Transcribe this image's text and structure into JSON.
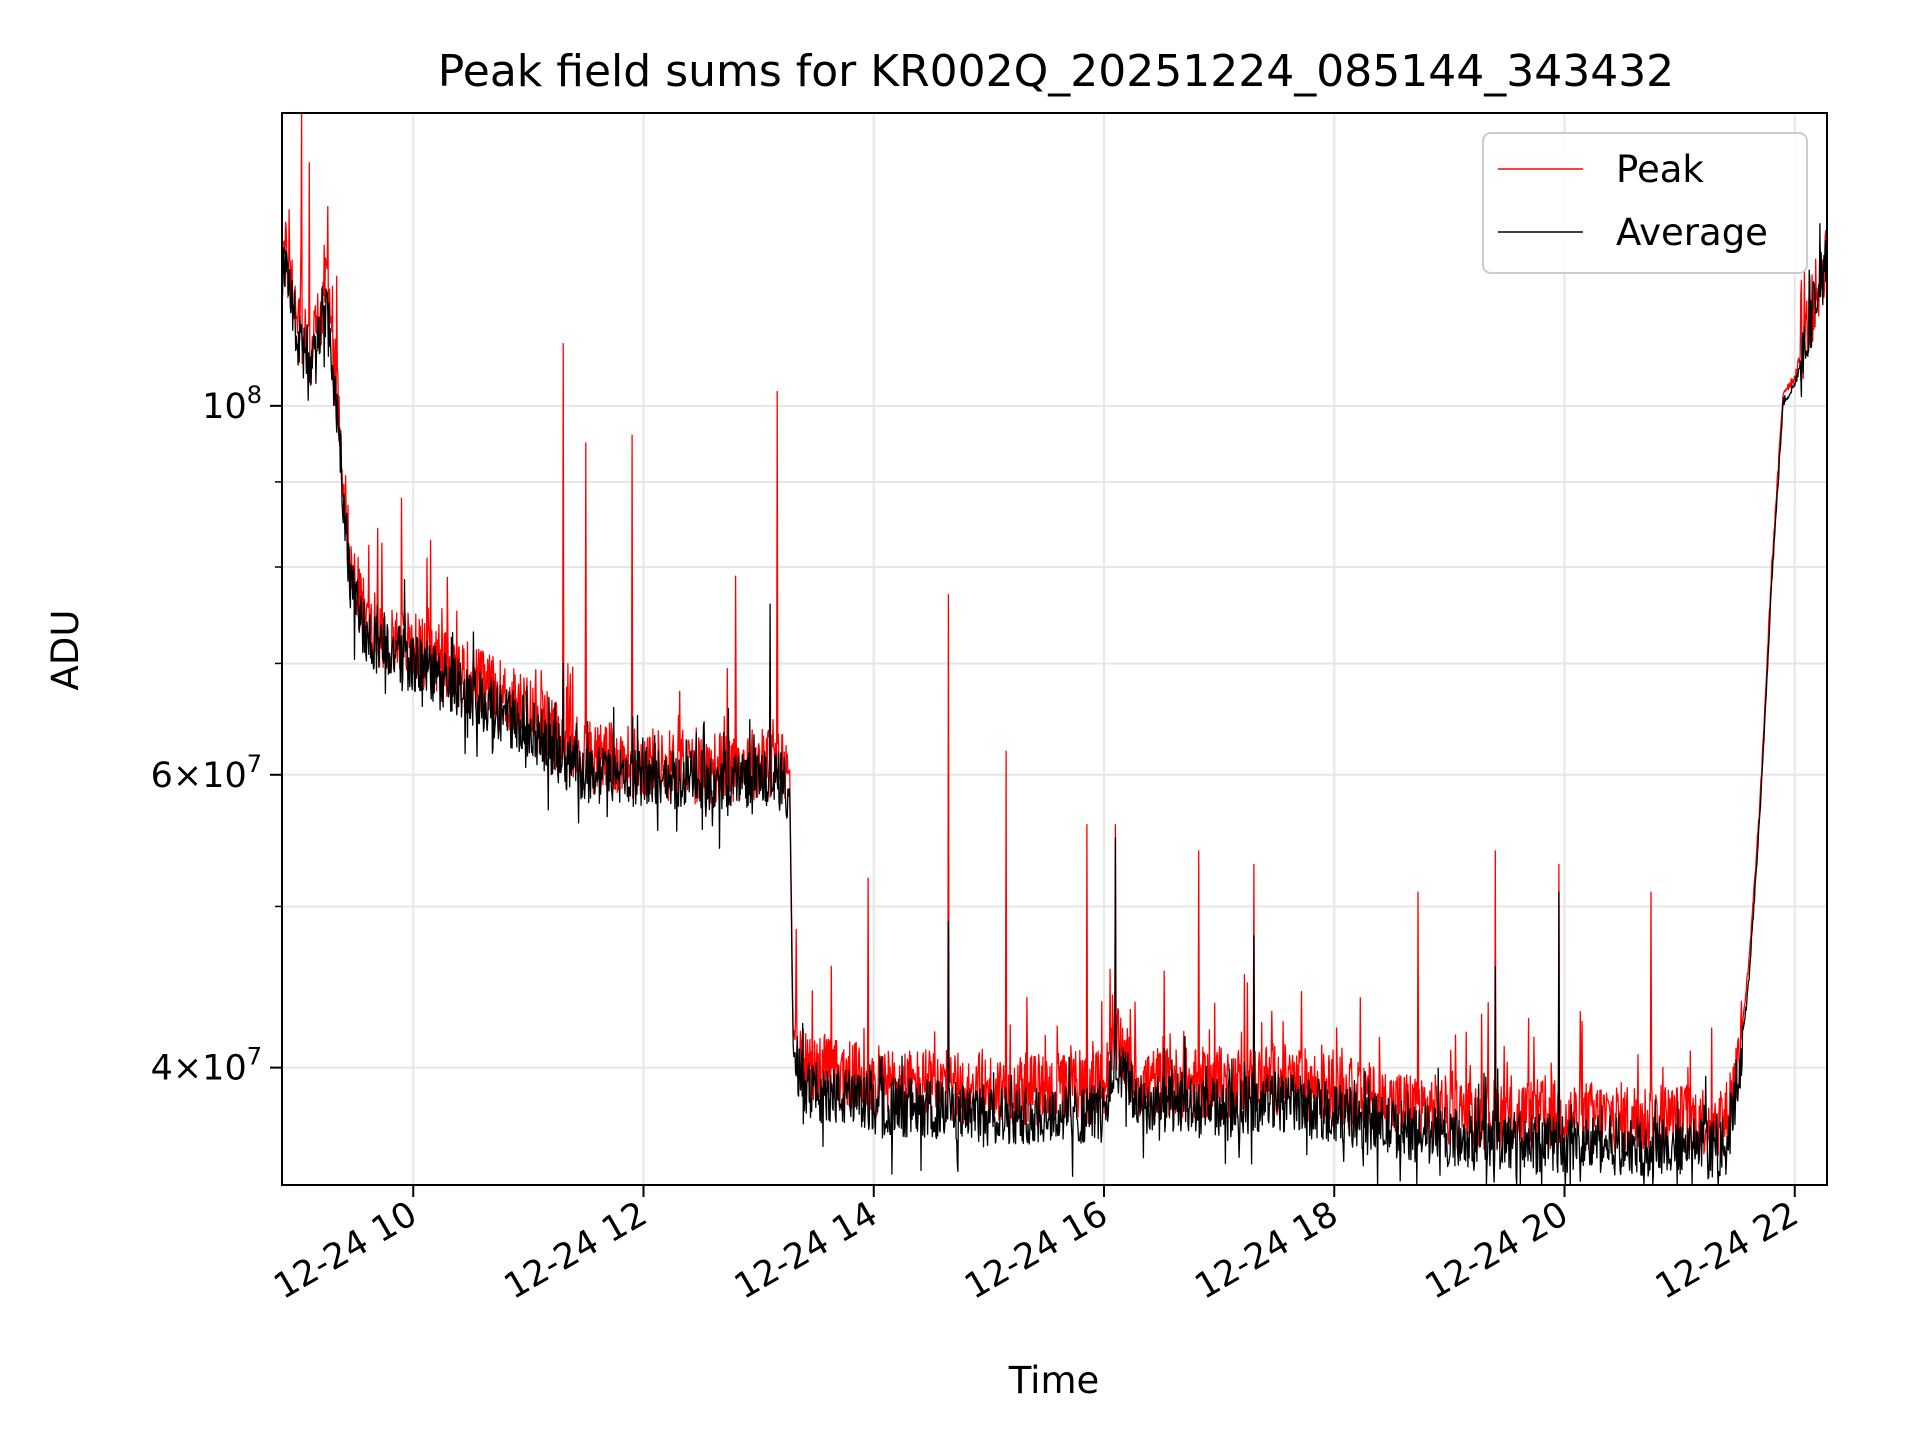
{
  "chart_data": {
    "type": "line",
    "title": "Peak field sums for KR002Q_20251224_085144_343432",
    "xlabel": "Time",
    "ylabel": "ADU",
    "yscale": "log",
    "xlim_hours": [
      8.86,
      22.28
    ],
    "ylim": [
      34000000,
      150000000
    ],
    "grid": true,
    "legend_position": "top-right",
    "x_tick_labels": [
      {
        "hour": 10,
        "label": "12-24 10"
      },
      {
        "hour": 12,
        "label": "12-24 12"
      },
      {
        "hour": 14,
        "label": "12-24 14"
      },
      {
        "hour": 16,
        "label": "12-24 16"
      },
      {
        "hour": 18,
        "label": "12-24 18"
      },
      {
        "hour": 20,
        "label": "12-24 20"
      },
      {
        "hour": 22,
        "label": "12-24 22"
      }
    ],
    "y_major_ticks": [
      {
        "value": 40000000,
        "mantissa": "4",
        "exponent": "7"
      },
      {
        "value": 60000000,
        "mantissa": "6",
        "exponent": "7"
      },
      {
        "value": 100000000,
        "mantissa": "",
        "exponent": "8"
      }
    ],
    "y_minor_grid": [
      50000000,
      70000000,
      80000000,
      90000000
    ],
    "series": [
      {
        "name": "Peak",
        "color": "#ff0000",
        "baseline_points": [
          [
            8.86,
            126000000
          ],
          [
            9.0,
            113000000
          ],
          [
            9.1,
            107000000
          ],
          [
            9.25,
            118000000
          ],
          [
            9.35,
            100000000
          ],
          [
            9.45,
            80000000
          ],
          [
            9.6,
            74000000
          ],
          [
            10.0,
            71500000
          ],
          [
            10.5,
            68500000
          ],
          [
            11.0,
            65500000
          ],
          [
            11.3,
            63000000
          ],
          [
            11.5,
            61500000
          ],
          [
            12.0,
            61000000
          ],
          [
            12.5,
            60500000
          ],
          [
            13.0,
            61000000
          ],
          [
            13.2,
            61000000
          ],
          [
            13.27,
            60000000
          ],
          [
            13.3,
            42000000
          ],
          [
            13.4,
            40000000
          ],
          [
            14.0,
            39200000
          ],
          [
            15.0,
            38800000
          ],
          [
            15.8,
            38800000
          ],
          [
            16.0,
            39000000
          ],
          [
            16.1,
            41500000
          ],
          [
            16.3,
            39200000
          ],
          [
            17.0,
            39100000
          ],
          [
            17.5,
            39400000
          ],
          [
            18.0,
            38800000
          ],
          [
            18.5,
            38000000
          ],
          [
            19.0,
            37600000
          ],
          [
            20.0,
            37400000
          ],
          [
            21.0,
            37200000
          ],
          [
            21.4,
            37200000
          ],
          [
            21.5,
            40000000
          ],
          [
            21.6,
            46000000
          ],
          [
            21.7,
            58000000
          ],
          [
            21.8,
            80000000
          ],
          [
            21.9,
            102000000
          ],
          [
            22.0,
            104000000
          ],
          [
            22.28,
            124000000
          ]
        ],
        "spikes": [
          [
            9.03,
            150000000
          ],
          [
            9.1,
            140000000
          ],
          [
            9.3,
            118000000
          ],
          [
            9.9,
            88000000
          ],
          [
            10.15,
            83000000
          ],
          [
            11.3,
            109000000
          ],
          [
            11.5,
            95000000
          ],
          [
            11.9,
            96000000
          ],
          [
            12.8,
            79000000
          ],
          [
            13.16,
            102000000
          ],
          [
            13.95,
            52000000
          ],
          [
            14.65,
            77000000
          ],
          [
            15.15,
            62000000
          ],
          [
            15.85,
            56000000
          ],
          [
            16.1,
            56000000
          ],
          [
            16.82,
            54000000
          ],
          [
            17.3,
            53000000
          ],
          [
            18.73,
            51000000
          ],
          [
            19.4,
            54000000
          ],
          [
            19.95,
            53000000
          ],
          [
            20.75,
            51000000
          ]
        ]
      },
      {
        "name": "Average",
        "color": "#000000",
        "baseline_points": [
          [
            8.86,
            124000000
          ],
          [
            9.0,
            110000000
          ],
          [
            9.1,
            104000000
          ],
          [
            9.25,
            114000000
          ],
          [
            9.35,
            97000000
          ],
          [
            9.45,
            78000000
          ],
          [
            9.6,
            72500000
          ],
          [
            10.0,
            70000000
          ],
          [
            10.5,
            67000000
          ],
          [
            11.0,
            64000000
          ],
          [
            11.3,
            61500000
          ],
          [
            11.5,
            60000000
          ],
          [
            12.0,
            59800000
          ],
          [
            12.5,
            59500000
          ],
          [
            13.0,
            59800000
          ],
          [
            13.2,
            59500000
          ],
          [
            13.27,
            58500000
          ],
          [
            13.3,
            41000000
          ],
          [
            13.4,
            38800000
          ],
          [
            14.0,
            38000000
          ],
          [
            15.0,
            37500000
          ],
          [
            15.8,
            37500000
          ],
          [
            16.0,
            37800000
          ],
          [
            16.1,
            40500000
          ],
          [
            16.3,
            38000000
          ],
          [
            17.0,
            37800000
          ],
          [
            17.5,
            38200000
          ],
          [
            18.0,
            37600000
          ],
          [
            18.5,
            36800000
          ],
          [
            19.0,
            36300000
          ],
          [
            20.0,
            36000000
          ],
          [
            21.0,
            35800000
          ],
          [
            21.4,
            35800000
          ],
          [
            21.5,
            38800000
          ],
          [
            21.6,
            45000000
          ],
          [
            21.7,
            57000000
          ],
          [
            21.8,
            78500000
          ],
          [
            21.9,
            100500000
          ],
          [
            22.0,
            103000000
          ],
          [
            22.28,
            123000000
          ]
        ],
        "spikes": [
          [
            11.3,
            70000000
          ],
          [
            13.1,
            76000000
          ],
          [
            14.65,
            49000000
          ],
          [
            16.1,
            55000000
          ],
          [
            17.3,
            48000000
          ],
          [
            19.4,
            46000000
          ],
          [
            19.95,
            51000000
          ]
        ]
      }
    ]
  }
}
